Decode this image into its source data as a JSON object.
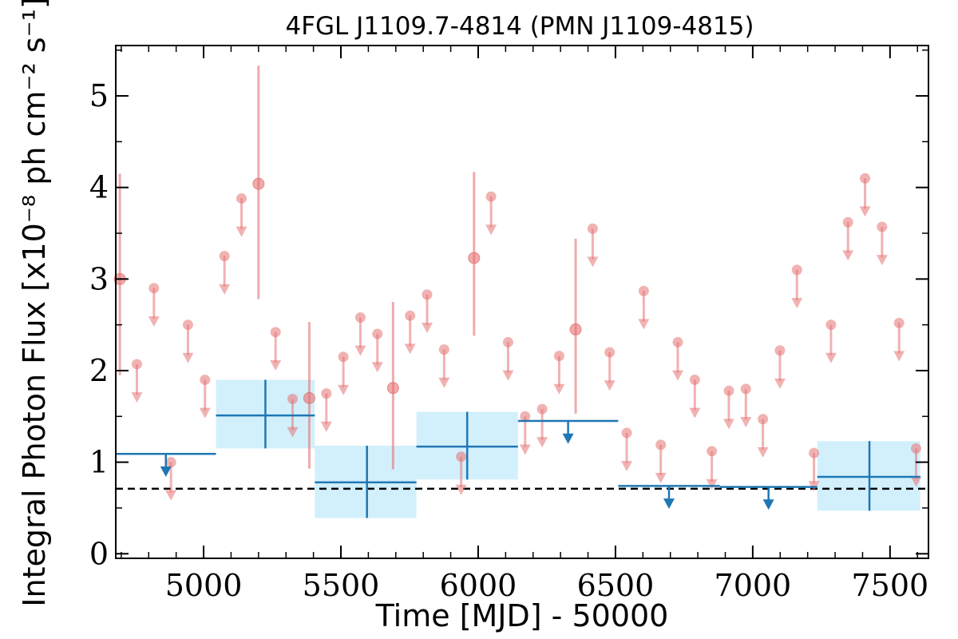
{
  "chart_data": {
    "type": "scatter",
    "title": "4FGL J1109.7-4814 (PMN J1109-4815)",
    "xlabel": "Time [MJD] - 50000",
    "ylabel": "Integral Photon Flux [x10⁻⁸ ph cm⁻² s⁻¹]",
    "xlim": [
      4680,
      7640
    ],
    "ylim": [
      -0.05,
      5.55
    ],
    "x_ticks": [
      5000,
      5500,
      6000,
      6500,
      7000,
      7500
    ],
    "y_ticks": [
      0,
      1,
      2,
      3,
      4,
      5
    ],
    "x_tick_labels": [
      "5000",
      "5500",
      "6000",
      "6500",
      "7000",
      "7500"
    ],
    "y_tick_labels": [
      "0",
      "1",
      "2",
      "3",
      "4",
      "5"
    ],
    "grid": false,
    "colors": {
      "short_bins": "#e57373",
      "long_bins": "#1f77b4",
      "long_bins_box": "#cdeefc",
      "mean_line": "#000000"
    },
    "mean_flux": 0.71,
    "short_bins_detections": [
      {
        "x": 4695,
        "y": 3.0,
        "ylo": 1.95,
        "yhi": 4.15
      },
      {
        "x": 5200,
        "y": 4.04,
        "ylo": 2.78,
        "yhi": 5.33
      },
      {
        "x": 5385,
        "y": 1.7,
        "ylo": 0.93,
        "yhi": 2.53
      },
      {
        "x": 5690,
        "y": 1.81,
        "ylo": 0.92,
        "yhi": 2.75
      },
      {
        "x": 5985,
        "y": 3.23,
        "ylo": 2.38,
        "yhi": 4.17
      },
      {
        "x": 6355,
        "y": 2.45,
        "ylo": 1.53,
        "yhi": 3.44
      }
    ],
    "short_bins_upper_limits": [
      {
        "x": 4757,
        "y": 2.07
      },
      {
        "x": 4819,
        "y": 2.9
      },
      {
        "x": 4881,
        "y": 1.0
      },
      {
        "x": 4943,
        "y": 2.5
      },
      {
        "x": 5005,
        "y": 1.9
      },
      {
        "x": 5076,
        "y": 3.25
      },
      {
        "x": 5138,
        "y": 3.88
      },
      {
        "x": 5262,
        "y": 2.42
      },
      {
        "x": 5324,
        "y": 1.69
      },
      {
        "x": 5447,
        "y": 1.75
      },
      {
        "x": 5509,
        "y": 2.15
      },
      {
        "x": 5571,
        "y": 2.58
      },
      {
        "x": 5633,
        "y": 2.4
      },
      {
        "x": 5752,
        "y": 2.6
      },
      {
        "x": 5814,
        "y": 2.83
      },
      {
        "x": 5876,
        "y": 2.23
      },
      {
        "x": 5938,
        "y": 1.06
      },
      {
        "x": 6047,
        "y": 3.9
      },
      {
        "x": 6109,
        "y": 2.31
      },
      {
        "x": 6171,
        "y": 1.5
      },
      {
        "x": 6233,
        "y": 1.58
      },
      {
        "x": 6295,
        "y": 2.16
      },
      {
        "x": 6417,
        "y": 3.55
      },
      {
        "x": 6479,
        "y": 2.2
      },
      {
        "x": 6541,
        "y": 1.32
      },
      {
        "x": 6603,
        "y": 2.87
      },
      {
        "x": 6665,
        "y": 1.19
      },
      {
        "x": 6727,
        "y": 2.31
      },
      {
        "x": 6789,
        "y": 1.9
      },
      {
        "x": 6851,
        "y": 1.12
      },
      {
        "x": 6913,
        "y": 1.78
      },
      {
        "x": 6975,
        "y": 1.8
      },
      {
        "x": 7037,
        "y": 1.47
      },
      {
        "x": 7099,
        "y": 2.22
      },
      {
        "x": 7161,
        "y": 3.1
      },
      {
        "x": 7223,
        "y": 1.1
      },
      {
        "x": 7285,
        "y": 2.5
      },
      {
        "x": 7347,
        "y": 3.62
      },
      {
        "x": 7409,
        "y": 4.1
      },
      {
        "x": 7471,
        "y": 3.57
      },
      {
        "x": 7533,
        "y": 2.52
      },
      {
        "x": 7595,
        "y": 1.15
      }
    ],
    "long_bins_detections": [
      {
        "x": 5225,
        "xlo": 5045,
        "xhi": 5405,
        "y": 1.51,
        "ylo": 1.15,
        "yhi": 1.9
      },
      {
        "x": 5595,
        "xlo": 5405,
        "xhi": 5775,
        "y": 0.78,
        "ylo": 0.39,
        "yhi": 1.18
      },
      {
        "x": 5960,
        "xlo": 5775,
        "xhi": 6145,
        "y": 1.17,
        "ylo": 0.81,
        "yhi": 1.55
      },
      {
        "x": 7425,
        "xlo": 7235,
        "xhi": 7610,
        "y": 0.84,
        "ylo": 0.47,
        "yhi": 1.23
      }
    ],
    "long_bins_upper_limits": [
      {
        "xlo": 4680,
        "xhi": 5045,
        "y": 1.09
      },
      {
        "xlo": 6145,
        "xhi": 6510,
        "y": 1.45
      },
      {
        "xlo": 6510,
        "xhi": 6880,
        "y": 0.74
      },
      {
        "xlo": 6880,
        "xhi": 7235,
        "y": 0.73
      }
    ]
  }
}
